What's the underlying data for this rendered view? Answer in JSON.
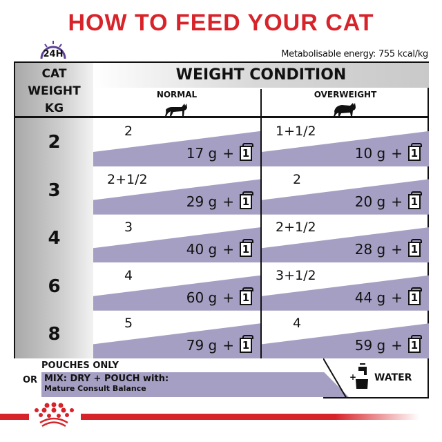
{
  "title": "HOW TO FEED YOUR CAT",
  "clock_label": "24H",
  "energy": "Metabolisable energy: 755 kcal/kg",
  "header": {
    "weight_col": [
      "CAT",
      "WEIGHT",
      "KG"
    ],
    "condition": "WEIGHT CONDITION",
    "normal": "NORMAL",
    "overweight": "OVERWEIGHT"
  },
  "rows": [
    {
      "weight": "2",
      "normal": {
        "pouches": "2",
        "grams": "17 g"
      },
      "overweight": {
        "pouches": "1+1/2",
        "grams": "10 g"
      }
    },
    {
      "weight": "3",
      "normal": {
        "pouches": "2+1/2",
        "grams": "29 g"
      },
      "overweight": {
        "pouches": "2",
        "grams": "20 g"
      }
    },
    {
      "weight": "4",
      "normal": {
        "pouches": "3",
        "grams": "40 g"
      },
      "overweight": {
        "pouches": "2+1/2",
        "grams": "28 g"
      }
    },
    {
      "weight": "6",
      "normal": {
        "pouches": "4",
        "grams": "60 g"
      },
      "overweight": {
        "pouches": "3+1/2",
        "grams": "44 g"
      }
    },
    {
      "weight": "8",
      "normal": {
        "pouches": "5",
        "grams": "79 g"
      },
      "overweight": {
        "pouches": "4",
        "grams": "59 g"
      }
    }
  ],
  "plus": "+",
  "pouch_icon_label": "1",
  "footer": {
    "pouches_only": "POUCHES ONLY",
    "or": "OR",
    "mix": "MIX: DRY + POUCH with:",
    "product": "Mature Consult Balance",
    "water": "WATER",
    "water_plus": "+"
  },
  "colors": {
    "brand_red": "#d7232a",
    "purple": "#a59fc4",
    "clock": "#5b3f95"
  }
}
